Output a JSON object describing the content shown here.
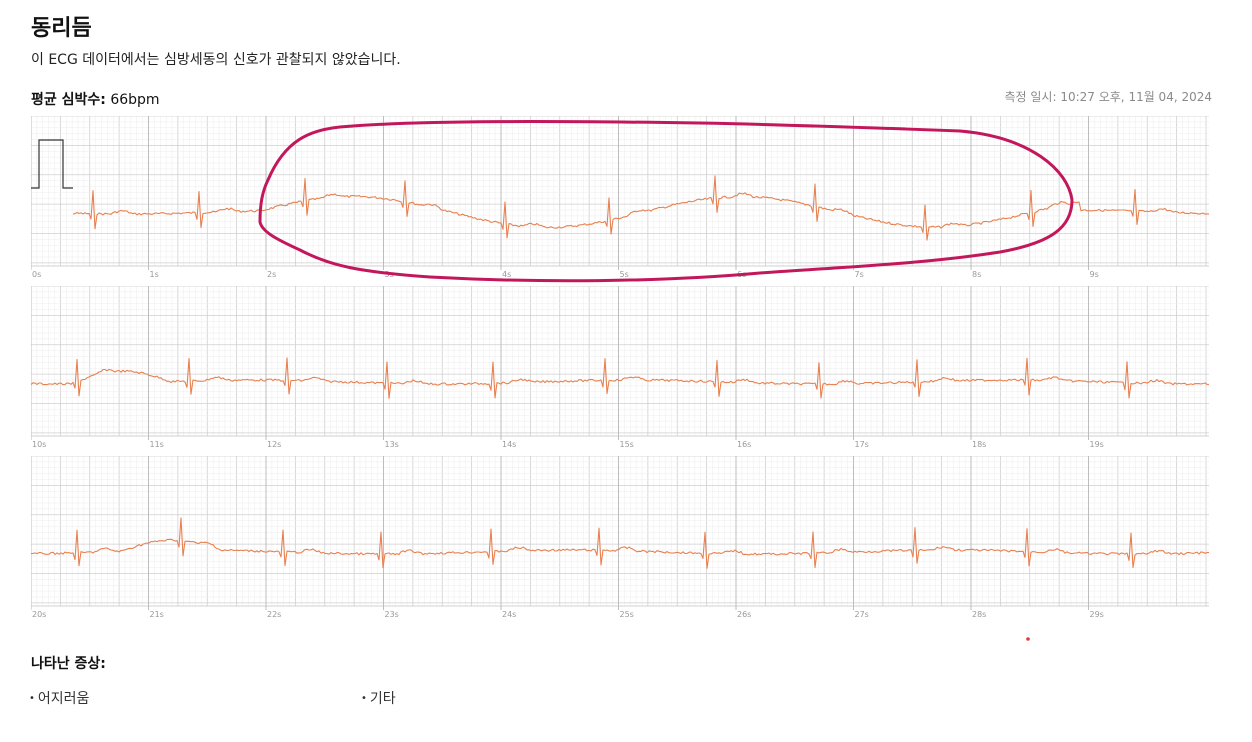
{
  "header": {
    "title": "동리듬",
    "subtitle": "이 ECG 데이터에서는 심방세동의 신호가 관찰되지 않았습니다."
  },
  "summary": {
    "heart_rate_label": "평균 심박수:",
    "heart_rate_value": "66bpm",
    "measured_at": "측정 일시: 10:27 오후, 11월 04, 2024"
  },
  "strips": [
    {
      "time_labels": [
        "0s",
        "1s",
        "2s",
        "3s",
        "4s",
        "5s",
        "6s",
        "7s",
        "8s",
        "9s"
      ]
    },
    {
      "time_labels": [
        "10s",
        "11s",
        "12s",
        "13s",
        "14s",
        "15s",
        "16s",
        "17s",
        "18s",
        "19s"
      ]
    },
    {
      "time_labels": [
        "20s",
        "21s",
        "22s",
        "23s",
        "24s",
        "25s",
        "26s",
        "27s",
        "28s",
        "29s"
      ]
    }
  ],
  "symptoms": {
    "title": "나타난 증상:",
    "items": [
      "어지러움",
      "기타"
    ]
  },
  "colors": {
    "trace": "#e8804f",
    "grid_minor": "#ececec",
    "grid_major": "#cfcfcf",
    "annotation": "#c2185b"
  }
}
